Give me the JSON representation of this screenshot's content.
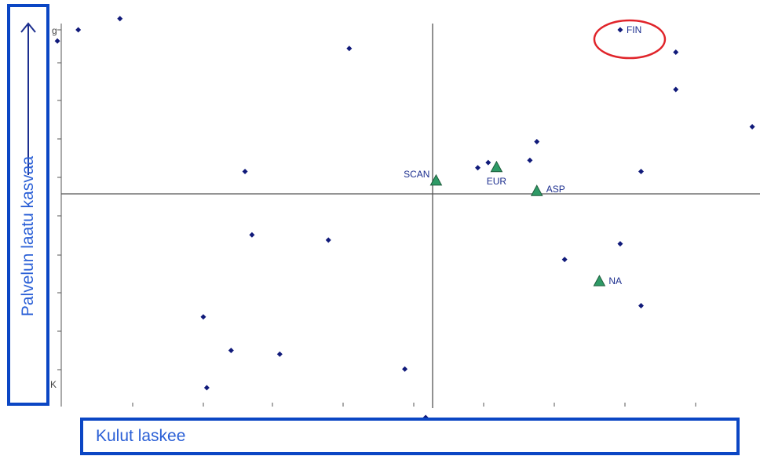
{
  "chart_data": {
    "type": "scatter",
    "xlabel": "Kulut laskee",
    "ylabel": "Palvelun laatu kasvaa",
    "xlim": [
      -5.4,
      4.6
    ],
    "ylim": [
      -3.0,
      2.4
    ],
    "grid": false,
    "axes_cross_at": [
      0,
      0
    ],
    "y_tick_visible_label": "g",
    "x_tick_visible_label": "K",
    "series": [
      {
        "marker": "diamond",
        "color": "#101a7a",
        "points": [
          {
            "x": -5.4,
            "y": 2.05
          },
          {
            "x": -5.1,
            "y": 2.2
          },
          {
            "x": -4.5,
            "y": 2.35
          },
          {
            "x": -1.2,
            "y": 1.95
          },
          {
            "x": 2.7,
            "y": 2.2
          },
          {
            "x": 3.5,
            "y": 1.9
          },
          {
            "x": 3.5,
            "y": 1.4
          },
          {
            "x": 4.6,
            "y": 0.9
          },
          {
            "x": 1.5,
            "y": 0.7
          },
          {
            "x": 0.65,
            "y": 0.35
          },
          {
            "x": 0.8,
            "y": 0.42
          },
          {
            "x": 1.4,
            "y": 0.45
          },
          {
            "x": 3.0,
            "y": 0.3
          },
          {
            "x": -2.7,
            "y": 0.3
          },
          {
            "x": -2.6,
            "y": -0.55
          },
          {
            "x": -1.5,
            "y": -0.62
          },
          {
            "x": 2.7,
            "y": -0.67
          },
          {
            "x": 1.9,
            "y": -0.88
          },
          {
            "x": 3.0,
            "y": -1.5
          },
          {
            "x": -3.3,
            "y": -1.65
          },
          {
            "x": -2.9,
            "y": -2.1
          },
          {
            "x": -2.2,
            "y": -2.15
          },
          {
            "x": -0.4,
            "y": -2.35
          },
          {
            "x": -3.25,
            "y": -2.6
          },
          {
            "x": -0.1,
            "y": -3.0
          }
        ]
      },
      {
        "marker": "triangle",
        "color": "#2e9a66",
        "points": [
          {
            "x": 0.05,
            "y": 0.18
          },
          {
            "x": 0.92,
            "y": 0.36
          },
          {
            "x": 1.5,
            "y": 0.04
          },
          {
            "x": 2.4,
            "y": -1.17
          }
        ]
      }
    ],
    "point_labels": [
      {
        "text": "FIN",
        "x": 2.7,
        "y": 2.2
      },
      {
        "text": "SCAN",
        "x": 0.05,
        "y": 0.18
      },
      {
        "text": "EUR",
        "x": 0.92,
        "y": 0.36
      },
      {
        "text": "ASP",
        "x": 1.5,
        "y": 0.04
      },
      {
        "text": "NA",
        "x": 2.4,
        "y": -1.17
      }
    ],
    "highlight": {
      "label": "FIN",
      "shape": "ellipse",
      "color": "#e0242a"
    }
  }
}
